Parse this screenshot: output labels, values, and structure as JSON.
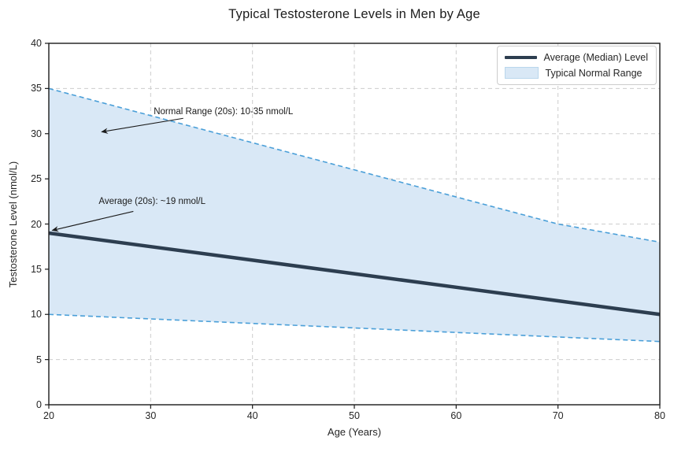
{
  "chart_data": {
    "type": "area",
    "title": "Typical Testosterone Levels in Men by Age",
    "xlabel": "Age (Years)",
    "ylabel": "Testosterone Level (nmol/L)",
    "x": [
      20,
      30,
      40,
      50,
      60,
      70,
      80
    ],
    "series": [
      {
        "name": "Average (Median) Level",
        "role": "median",
        "values": [
          19,
          17.5,
          16,
          14.5,
          13,
          11.5,
          10
        ]
      },
      {
        "name": "Typical Normal Range (upper)",
        "role": "upper",
        "values": [
          35,
          32,
          29,
          26,
          23,
          20,
          18
        ]
      },
      {
        "name": "Typical Normal Range (lower)",
        "role": "lower",
        "values": [
          10,
          9.5,
          9,
          8.5,
          8,
          7.5,
          7
        ]
      }
    ],
    "xlim": [
      20,
      80
    ],
    "ylim": [
      0,
      40
    ],
    "xticks": [
      20,
      30,
      40,
      50,
      60,
      70,
      80
    ],
    "yticks": [
      0,
      5,
      10,
      15,
      20,
      25,
      30,
      35,
      40
    ],
    "grid": true,
    "legend_position": "upper right",
    "annotations": [
      {
        "text": "Normal Range (20s): 10-35 nmol/L",
        "text_x": 30.3,
        "text_y": 32.4,
        "tail_x": 33.2,
        "tail_y": 31.7,
        "tip_x": 25.2,
        "tip_y": 30.2
      },
      {
        "text": "Average (20s): ~19 nmol/L",
        "text_x": 24.9,
        "text_y": 22.5,
        "tail_x": 28.3,
        "tail_y": 21.4,
        "tip_x": 20.35,
        "tip_y": 19.3
      }
    ]
  },
  "legend": {
    "items": [
      {
        "label": "Average (Median) Level",
        "swatch": "line"
      },
      {
        "label": "Typical Normal Range",
        "swatch": "patch"
      }
    ]
  },
  "colors": {
    "median_line": "#2d3e50",
    "band_fill": "#d9e8f6",
    "band_edge": "#4a9fd8",
    "patch_swatch_border": "#b9d6ec",
    "grid": "#cdcdcd",
    "frame": "#1a1a1a",
    "text": "#262626",
    "annotation_arrow": "#1a1a1a"
  }
}
